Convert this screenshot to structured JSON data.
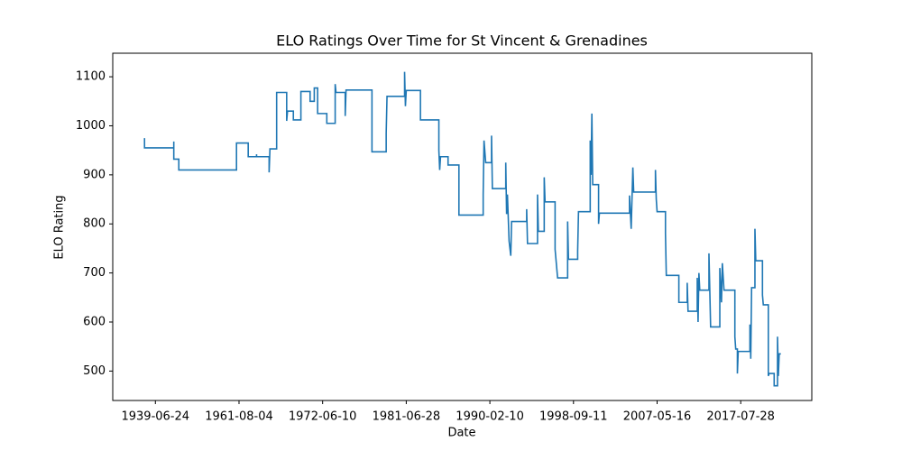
{
  "chart_data": {
    "type": "line",
    "title": "ELO Ratings Over Time for St Vincent & Grenadines",
    "x_label": "Date",
    "y_label": "ELO Rating",
    "x": [
      87,
      87,
      122,
      122,
      122,
      128,
      128,
      197,
      197,
      211,
      211,
      221,
      221,
      221,
      236,
      236,
      237,
      245,
      245,
      257,
      257,
      258,
      265,
      265,
      274,
      274,
      285,
      285,
      290,
      290,
      294,
      294,
      305,
      305,
      315,
      315,
      316,
      327,
      327,
      328,
      359,
      359,
      376,
      376,
      377,
      398,
      398,
      399,
      400,
      417,
      417,
      439,
      439,
      440,
      441,
      450,
      450,
      463,
      463,
      492,
      492,
      493,
      495,
      502,
      502,
      503,
      519,
      519,
      520,
      521,
      523,
      525,
      526,
      544,
      544,
      545,
      557,
      557,
      558,
      565,
      565,
      566,
      578,
      578,
      581,
      593,
      593,
      594,
      605,
      605,
      606,
      620,
      620,
      621,
      622,
      623,
      630,
      630,
      631,
      667,
      667,
      669,
      671,
      672,
      698,
      698,
      699,
      700,
      710,
      710,
      711,
      726,
      726,
      736,
      736,
      737,
      748,
      748,
      749,
      750,
      751,
      762,
      762,
      764,
      775,
      775,
      777,
      778,
      780,
      793,
      793,
      794,
      796,
      796,
      797,
      811,
      811,
      812,
      813,
      817,
      817,
      818,
      826,
      826,
      827,
      833,
      833,
      834,
      840,
      840,
      844,
      844,
      845,
      846,
      848
    ],
    "series": [
      {
        "name": "ELO Rating",
        "color": "#1f77b4",
        "values": [
          975,
          955,
          955,
          968,
          932,
          932,
          910,
          910,
          965,
          965,
          937,
          937,
          942,
          937,
          937,
          905,
          953,
          953,
          1068,
          1068,
          1010,
          1030,
          1030,
          1012,
          1012,
          1070,
          1070,
          1050,
          1050,
          1077,
          1077,
          1025,
          1025,
          1005,
          1005,
          1085,
          1068,
          1068,
          1020,
          1073,
          1073,
          947,
          947,
          985,
          1060,
          1060,
          1110,
          1040,
          1072,
          1072,
          1012,
          1012,
          950,
          910,
          937,
          937,
          920,
          920,
          818,
          818,
          860,
          970,
          925,
          925,
          980,
          872,
          872,
          925,
          820,
          860,
          765,
          735,
          805,
          805,
          830,
          760,
          760,
          860,
          785,
          785,
          895,
          845,
          845,
          748,
          690,
          690,
          805,
          728,
          728,
          745,
          825,
          825,
          970,
          900,
          1025,
          880,
          880,
          800,
          822,
          822,
          858,
          790,
          915,
          865,
          865,
          910,
          850,
          825,
          825,
          780,
          695,
          695,
          640,
          640,
          680,
          622,
          622,
          690,
          600,
          700,
          665,
          665,
          740,
          590,
          590,
          710,
          640,
          720,
          665,
          665,
          570,
          545,
          545,
          495,
          540,
          540,
          595,
          525,
          670,
          670,
          790,
          725,
          725,
          655,
          635,
          635,
          490,
          495,
          495,
          470,
          470,
          570,
          490,
          535,
          535
        ]
      }
    ],
    "xlim": [
      49,
      885
    ],
    "ylim": [
      440,
      1148
    ],
    "xticks": [
      {
        "value": 100,
        "label": "1939-06-24"
      },
      {
        "value": 200,
        "label": "1961-08-04"
      },
      {
        "value": 300,
        "label": "1972-06-10"
      },
      {
        "value": 400,
        "label": "1981-06-28"
      },
      {
        "value": 500,
        "label": "1990-02-10"
      },
      {
        "value": 600,
        "label": "1998-09-11"
      },
      {
        "value": 700,
        "label": "2007-05-16"
      },
      {
        "value": 800,
        "label": "2017-07-28"
      }
    ],
    "yticks": [
      500,
      600,
      700,
      800,
      900,
      1000,
      1100
    ]
  }
}
